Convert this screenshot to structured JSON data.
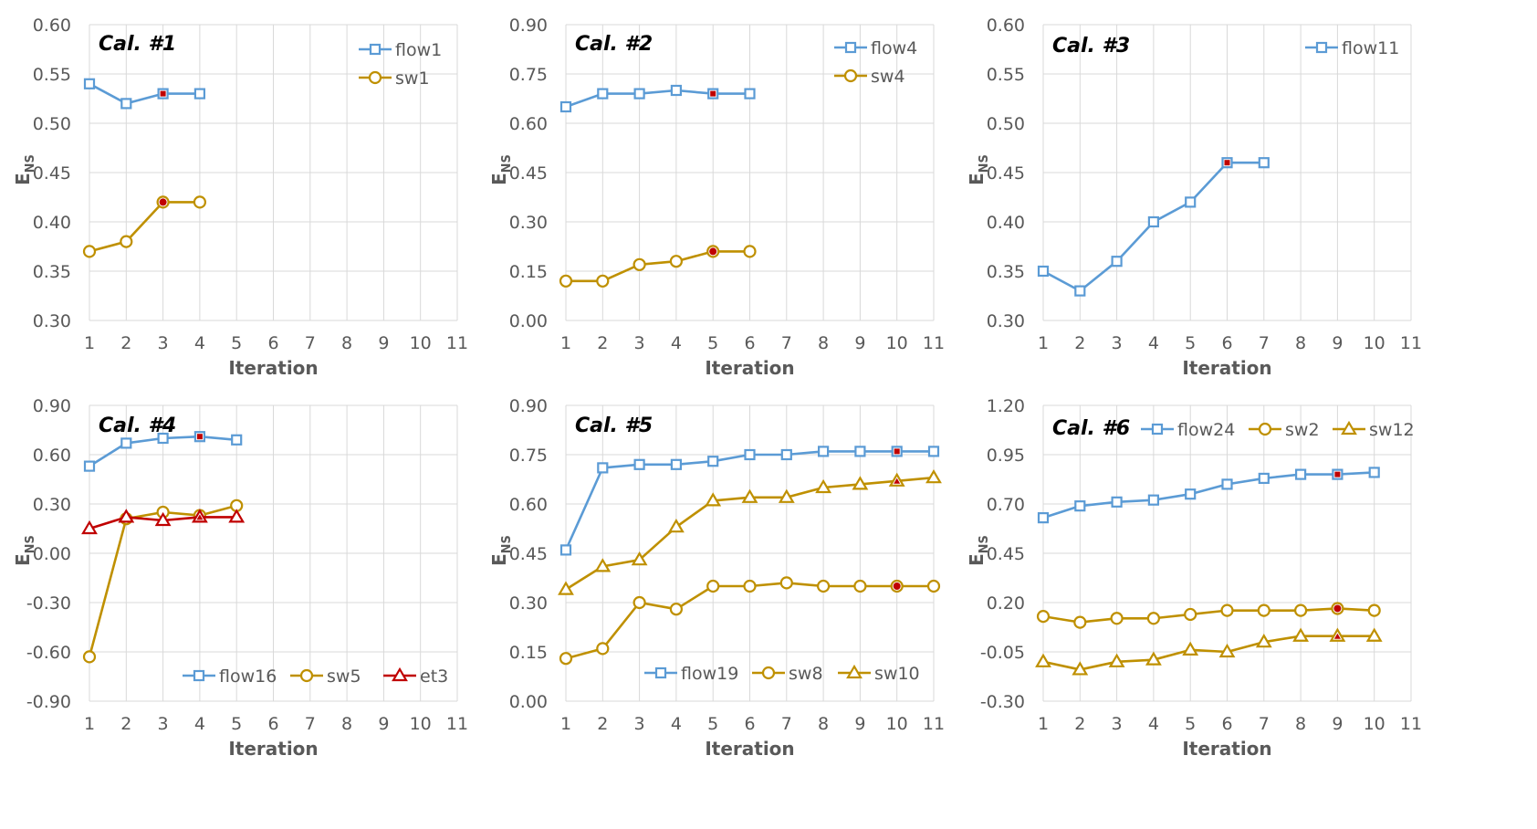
{
  "colors": {
    "flow": "#5b9bd5",
    "sw_and_et": "#bf9000",
    "et": "#c00000",
    "best_marker": "#c00000",
    "grid": "#d9d9d9",
    "text": "#595959"
  },
  "chart_data": [
    {
      "type": "line",
      "title": "Cal. #1",
      "xlabel": "Iteration",
      "ylabel": "E",
      "ylabel_sub": "NS",
      "xlim": [
        1,
        11
      ],
      "ylim": [
        0.3,
        0.6
      ],
      "yticks": [
        "0.30",
        "0.35",
        "0.40",
        "0.45",
        "0.50",
        "0.55",
        "0.60"
      ],
      "xticks": [
        "1",
        "2",
        "3",
        "4",
        "5",
        "6",
        "7",
        "8",
        "9",
        "10",
        "11"
      ],
      "grid": true,
      "legend": "top-right, stacked",
      "series": [
        {
          "name": "flow1",
          "marker": "square",
          "color": "#5b9bd5",
          "x": [
            1,
            2,
            3,
            4
          ],
          "values": [
            0.54,
            0.52,
            0.53,
            0.53
          ],
          "best_index": 2
        },
        {
          "name": "sw1",
          "marker": "circle",
          "color": "#bf9000",
          "x": [
            1,
            2,
            3,
            4
          ],
          "values": [
            0.37,
            0.38,
            0.42,
            0.42
          ],
          "best_index": 2
        }
      ]
    },
    {
      "type": "line",
      "title": "Cal. #2",
      "xlabel": "Iteration",
      "ylabel": "E",
      "ylabel_sub": "NS",
      "xlim": [
        1,
        11
      ],
      "ylim": [
        0.0,
        0.9
      ],
      "yticks": [
        "0.00",
        "0.15",
        "0.30",
        "0.45",
        "0.60",
        "0.75",
        "0.90"
      ],
      "xticks": [
        "1",
        "2",
        "3",
        "4",
        "5",
        "6",
        "7",
        "8",
        "9",
        "10",
        "11"
      ],
      "grid": true,
      "legend": "top-right, stacked",
      "series": [
        {
          "name": "flow4",
          "marker": "square",
          "color": "#5b9bd5",
          "x": [
            1,
            2,
            3,
            4,
            5,
            6
          ],
          "values": [
            0.65,
            0.69,
            0.69,
            0.7,
            0.69,
            0.69
          ],
          "best_index": 4
        },
        {
          "name": "sw4",
          "marker": "circle",
          "color": "#bf9000",
          "x": [
            1,
            2,
            3,
            4,
            5,
            6
          ],
          "values": [
            0.12,
            0.12,
            0.17,
            0.18,
            0.21,
            0.21
          ],
          "best_index": 4
        }
      ]
    },
    {
      "type": "line",
      "title": "Cal. #3",
      "xlabel": "Iteration",
      "ylabel": "E",
      "ylabel_sub": "NS",
      "xlim": [
        1,
        11
      ],
      "ylim": [
        0.3,
        0.6
      ],
      "yticks": [
        "0.30",
        "0.35",
        "0.40",
        "0.45",
        "0.50",
        "0.55",
        "0.60"
      ],
      "xticks": [
        "1",
        "2",
        "3",
        "4",
        "5",
        "6",
        "7",
        "8",
        "9",
        "10",
        "11"
      ],
      "grid": true,
      "legend": "top-right",
      "series": [
        {
          "name": "flow11",
          "marker": "square",
          "color": "#5b9bd5",
          "x": [
            1,
            2,
            3,
            4,
            5,
            6,
            7
          ],
          "values": [
            0.35,
            0.33,
            0.36,
            0.4,
            0.42,
            0.46,
            0.46
          ],
          "best_index": 5
        }
      ]
    },
    {
      "type": "line",
      "title": "Cal. #4",
      "xlabel": "Iteration",
      "ylabel": "E",
      "ylabel_sub": "NS",
      "xlim": [
        1,
        11
      ],
      "ylim": [
        -0.9,
        0.9
      ],
      "yticks": [
        "-0.90",
        "-0.60",
        "-0.30",
        "0.00",
        "0.30",
        "0.60",
        "0.90"
      ],
      "xticks": [
        "1",
        "2",
        "3",
        "4",
        "5",
        "6",
        "7",
        "8",
        "9",
        "10",
        "11"
      ],
      "grid": true,
      "legend": "bottom-right, in a row",
      "series": [
        {
          "name": "flow16",
          "marker": "square",
          "color": "#5b9bd5",
          "x": [
            1,
            2,
            3,
            4,
            5
          ],
          "values": [
            0.53,
            0.67,
            0.7,
            0.71,
            0.69
          ],
          "best_index": 3
        },
        {
          "name": "sw5",
          "marker": "circle",
          "color": "#bf9000",
          "x": [
            1,
            2,
            3,
            4,
            5
          ],
          "values": [
            -0.63,
            0.21,
            0.25,
            0.23,
            0.29
          ],
          "best_index": -1
        },
        {
          "name": "et3",
          "marker": "triangle",
          "color": "#c00000",
          "x": [
            1,
            2,
            3,
            4,
            5
          ],
          "values": [
            0.15,
            0.22,
            0.2,
            0.22,
            0.22
          ],
          "best_index": 3
        }
      ]
    },
    {
      "type": "line",
      "title": "Cal. #5",
      "xlabel": "Iteration",
      "ylabel": "E",
      "ylabel_sub": "NS",
      "xlim": [
        1,
        11
      ],
      "ylim": [
        0.0,
        0.9
      ],
      "yticks": [
        "0.00",
        "0.15",
        "0.30",
        "0.45",
        "0.60",
        "0.75",
        "0.90"
      ],
      "xticks": [
        "1",
        "2",
        "3",
        "4",
        "5",
        "6",
        "7",
        "8",
        "9",
        "10",
        "11"
      ],
      "grid": true,
      "legend": "bottom-right, in a row",
      "series": [
        {
          "name": "flow19",
          "marker": "square",
          "color": "#5b9bd5",
          "x": [
            1,
            2,
            3,
            4,
            5,
            6,
            7,
            8,
            9,
            10,
            11
          ],
          "values": [
            0.46,
            0.71,
            0.72,
            0.72,
            0.73,
            0.75,
            0.75,
            0.76,
            0.76,
            0.76,
            0.76
          ],
          "best_index": 9
        },
        {
          "name": "sw8",
          "marker": "circle",
          "color": "#bf9000",
          "x": [
            1,
            2,
            3,
            4,
            5,
            6,
            7,
            8,
            9,
            10,
            11
          ],
          "values": [
            0.13,
            0.16,
            0.3,
            0.28,
            0.35,
            0.35,
            0.36,
            0.35,
            0.35,
            0.35,
            0.35
          ],
          "best_index": 9
        },
        {
          "name": "sw10",
          "marker": "triangle",
          "color": "#bf9000",
          "x": [
            1,
            2,
            3,
            4,
            5,
            6,
            7,
            8,
            9,
            10,
            11
          ],
          "values": [
            0.34,
            0.41,
            0.43,
            0.53,
            0.61,
            0.62,
            0.62,
            0.65,
            0.66,
            0.67,
            0.68
          ],
          "best_index": 9
        }
      ]
    },
    {
      "type": "line",
      "title": "Cal. #6",
      "xlabel": "Iteration",
      "ylabel": "E",
      "ylabel_sub": "NS",
      "xlim": [
        1,
        11
      ],
      "ylim": [
        -0.3,
        1.2
      ],
      "yticks": [
        "-0.30",
        "-0.05",
        "0.20",
        "0.45",
        "0.70",
        "0.95",
        "1.20"
      ],
      "xticks": [
        "1",
        "2",
        "3",
        "4",
        "5",
        "6",
        "7",
        "8",
        "9",
        "10",
        "11"
      ],
      "grid": true,
      "legend": "top, in a row",
      "series": [
        {
          "name": "flow24",
          "marker": "square",
          "color": "#5b9bd5",
          "x": [
            1,
            2,
            3,
            4,
            5,
            6,
            7,
            8,
            9,
            10
          ],
          "values": [
            0.63,
            0.69,
            0.71,
            0.72,
            0.75,
            0.8,
            0.83,
            0.85,
            0.85,
            0.86
          ],
          "best_index": 8
        },
        {
          "name": "sw2",
          "marker": "circle",
          "color": "#bf9000",
          "x": [
            1,
            2,
            3,
            4,
            5,
            6,
            7,
            8,
            9,
            10
          ],
          "values": [
            0.13,
            0.1,
            0.12,
            0.12,
            0.14,
            0.16,
            0.16,
            0.16,
            0.17,
            0.16
          ],
          "best_index": 8
        },
        {
          "name": "sw12",
          "marker": "triangle",
          "color": "#bf9000",
          "x": [
            1,
            2,
            3,
            4,
            5,
            6,
            7,
            8,
            9,
            10
          ],
          "values": [
            -0.1,
            -0.14,
            -0.1,
            -0.09,
            -0.04,
            -0.05,
            0.0,
            0.03,
            0.03,
            0.03
          ],
          "best_index": 8
        }
      ]
    }
  ]
}
